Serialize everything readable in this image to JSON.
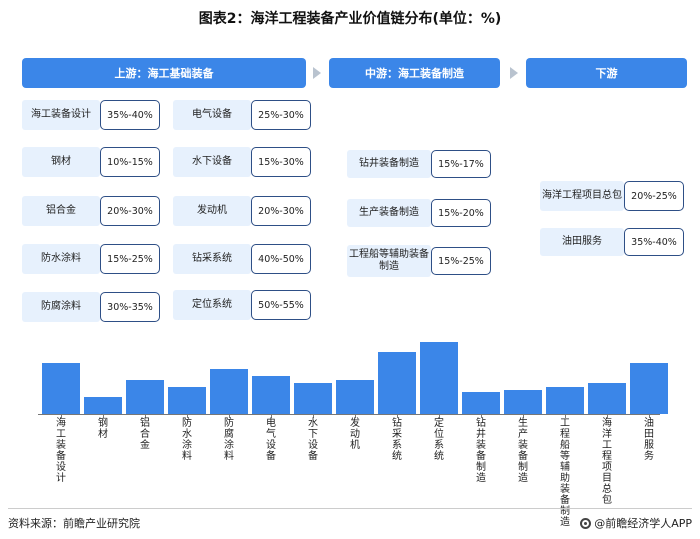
{
  "title": "图表2：海洋工程装备产业价值链分布(单位：%)",
  "stages": {
    "upstream": "上游：海工基础装备",
    "midstream": "中游：海工装备制造",
    "downstream": "下游"
  },
  "upstream_col1": [
    {
      "label": "海工装备设计",
      "value": "35%-40%"
    },
    {
      "label": "钢材",
      "value": "10%-15%"
    },
    {
      "label": "铝合金",
      "value": "20%-30%"
    },
    {
      "label": "防水涂料",
      "value": "15%-25%"
    },
    {
      "label": "防腐涂料",
      "value": "30%-35%"
    }
  ],
  "upstream_col2": [
    {
      "label": "电气设备",
      "value": "25%-30%"
    },
    {
      "label": "水下设备",
      "value": "15%-30%"
    },
    {
      "label": "发动机",
      "value": "20%-30%"
    },
    {
      "label": "钻采系统",
      "value": "40%-50%"
    },
    {
      "label": "定位系统",
      "value": "50%-55%"
    }
  ],
  "midstream": [
    {
      "label": "钻井装备制造",
      "value": "15%-17%"
    },
    {
      "label": "生产装备制造",
      "value": "15%-20%"
    },
    {
      "label": "工程船等辅助装备制造",
      "value": "15%-25%"
    }
  ],
  "downstream": [
    {
      "label": "海洋工程项目总包",
      "value": "20%-25%"
    },
    {
      "label": "油田服务",
      "value": "35%-40%"
    }
  ],
  "chart_data": {
    "type": "bar",
    "categories": [
      "海工装备设计",
      "钢材",
      "铝合金",
      "防水涂料",
      "防腐涂料",
      "电气设备",
      "水下设备",
      "发动机",
      "钻采系统",
      "定位系统",
      "钻井装备制造",
      "生产装备制造",
      "工程船等辅助装备制造",
      "海洋工程项目总包",
      "油田服务"
    ],
    "values": [
      37.5,
      12.5,
      25,
      20,
      32.5,
      27.5,
      22.5,
      25,
      45,
      52.5,
      16,
      17.5,
      20,
      22.5,
      37.5
    ]
  },
  "footer": {
    "source": "资料来源：前瞻产业研究院",
    "brand": "@前瞻经济学人APP"
  }
}
